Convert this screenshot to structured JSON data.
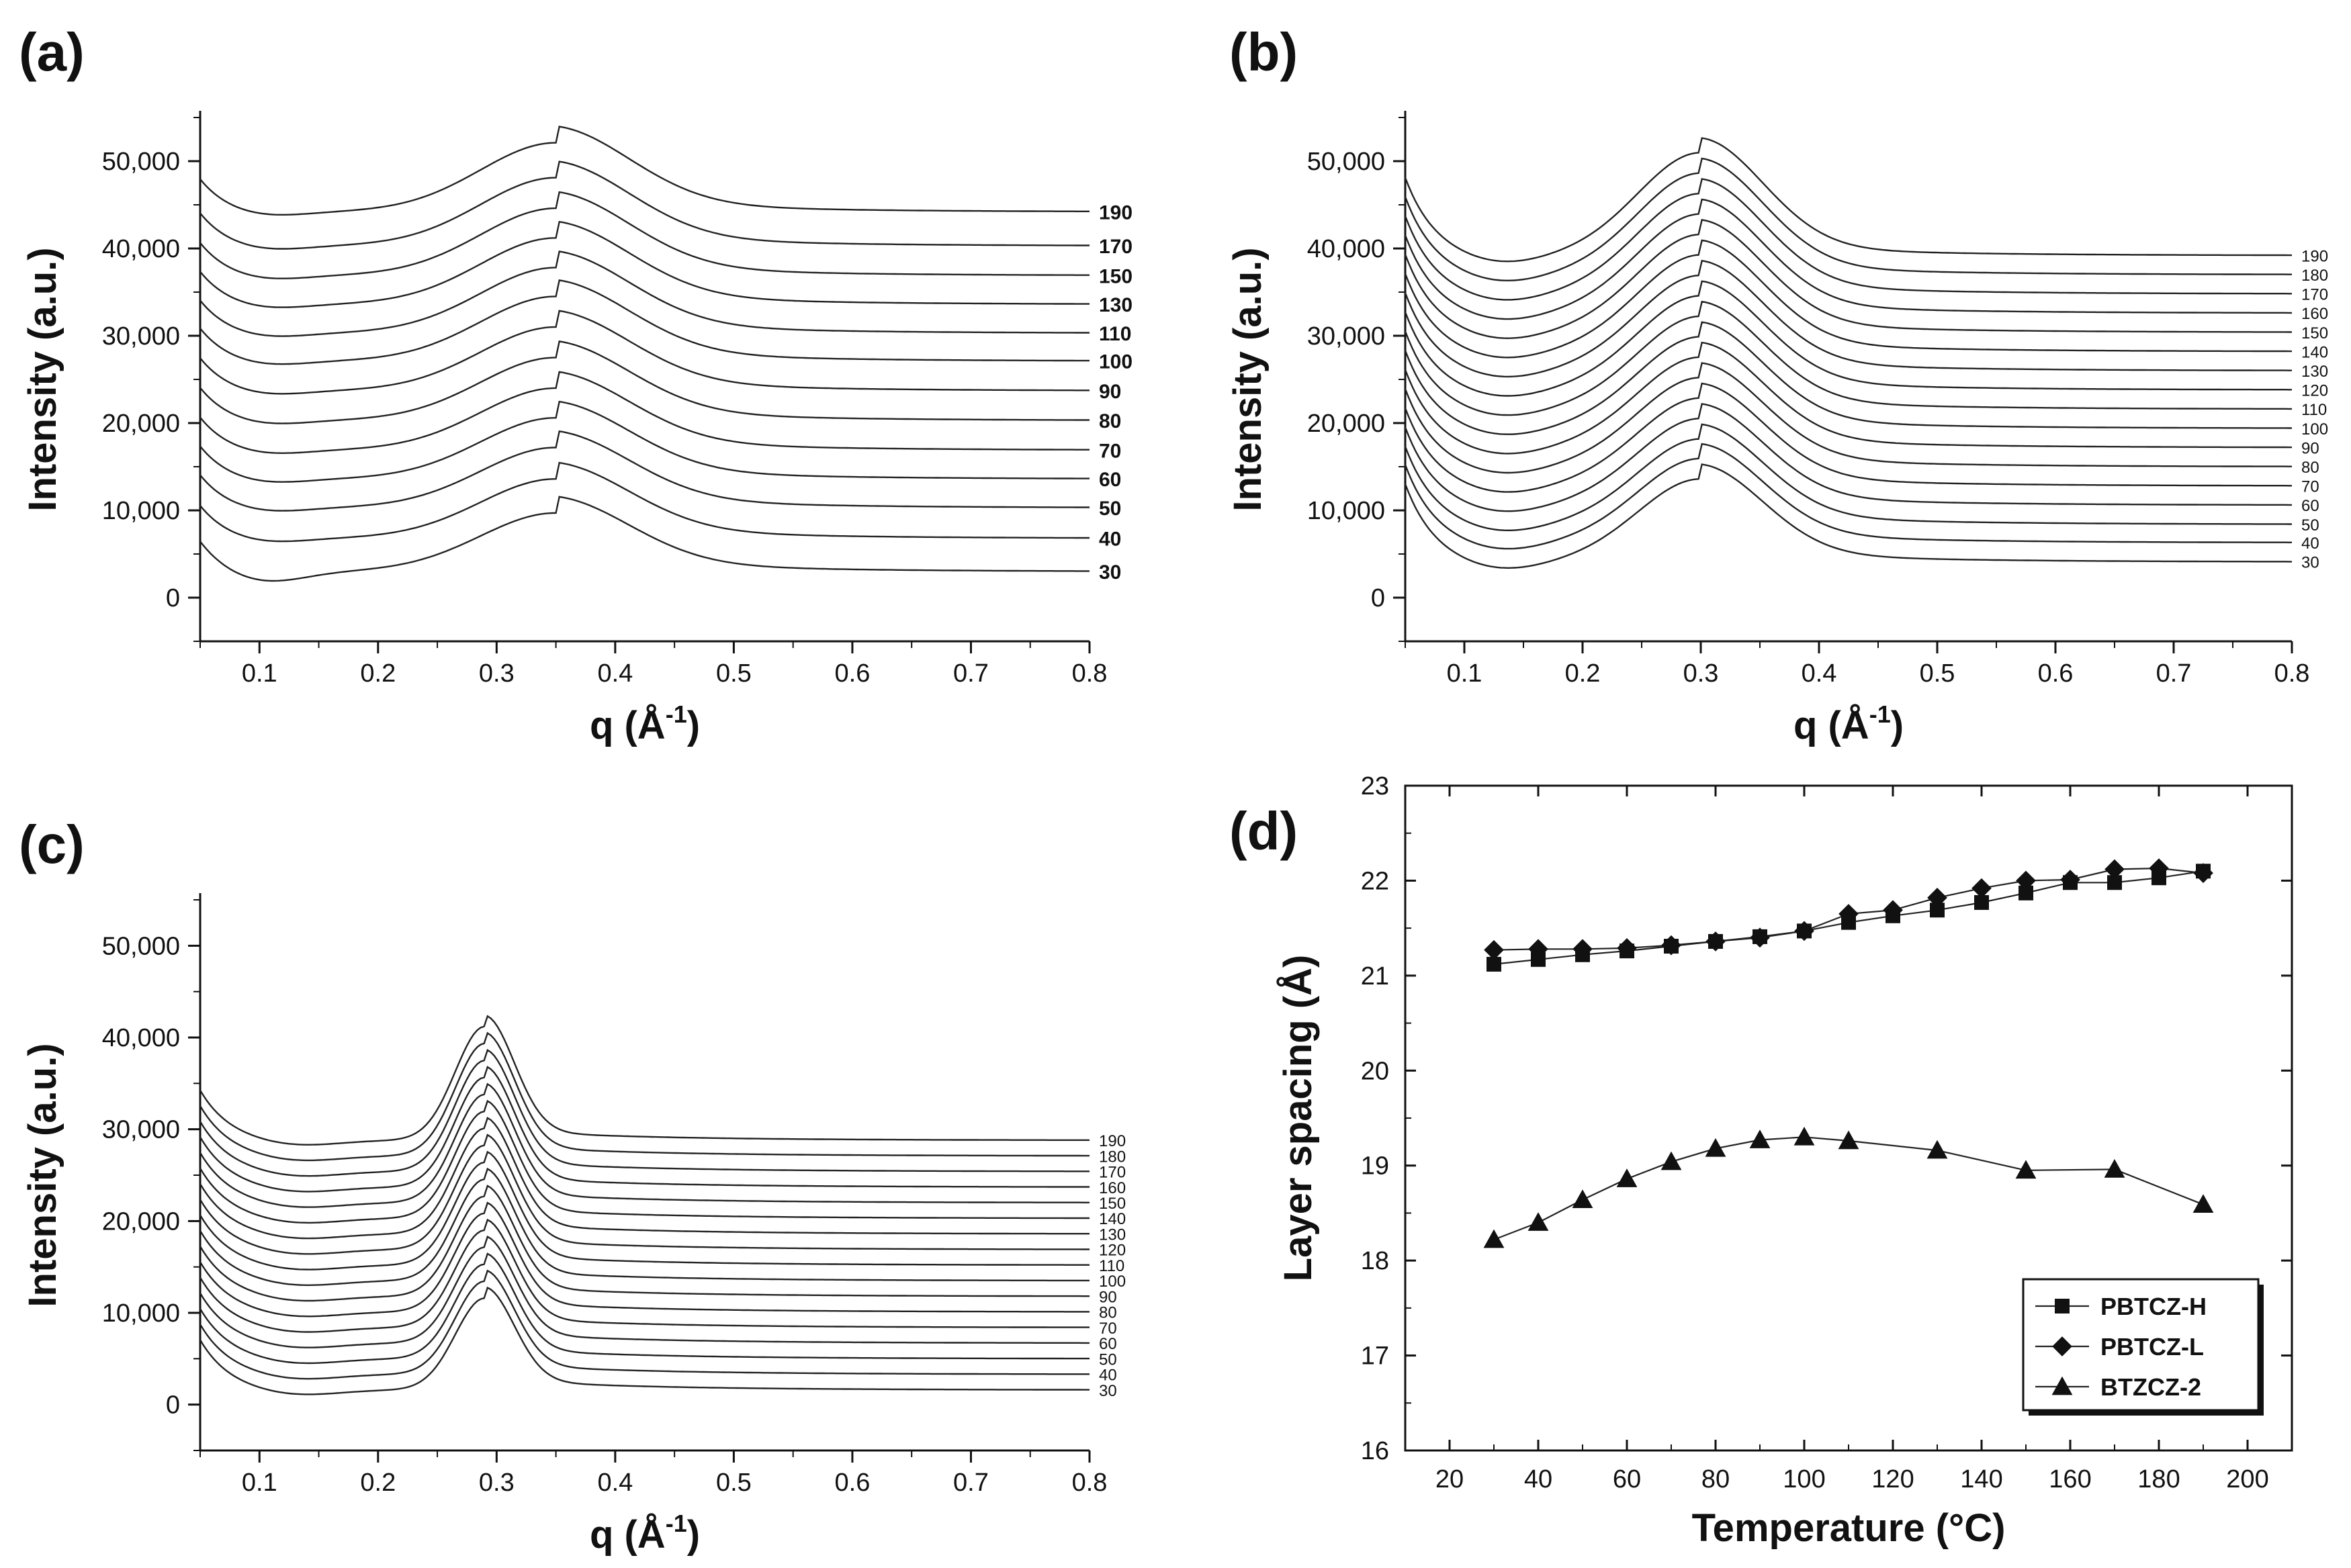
{
  "chart_data": [
    {
      "id": "a",
      "type": "line",
      "panel_label": "(a)",
      "xlabel": "q (Å",
      "xlabel_sup": "-1",
      "xlabel_close": ")",
      "ylabel": "Intensity (a.u.)",
      "xlim": [
        0.05,
        0.8
      ],
      "ylim": [
        -5000,
        55000
      ],
      "xticks": [
        0.1,
        0.2,
        0.3,
        0.4,
        0.5,
        0.6,
        0.7,
        0.8
      ],
      "xtick_labels": [
        "0.1",
        "0.2",
        "0.3",
        "0.4",
        "0.5",
        "0.6",
        "0.7",
        "0.8"
      ],
      "yticks": [
        0,
        10000,
        20000,
        30000,
        40000,
        50000
      ],
      "ytick_labels": [
        "0",
        "10,000",
        "20,000",
        "30,000",
        "40,000",
        "50,000"
      ],
      "curve_labels": [
        "30",
        "40",
        "50",
        "60",
        "70",
        "80",
        "90",
        "100",
        "110",
        "130",
        "150",
        "170",
        "190"
      ],
      "curve_end_values": [
        3000,
        6800,
        10300,
        13600,
        16900,
        20300,
        23700,
        27100,
        30300,
        33600,
        36900,
        40300,
        44200
      ],
      "peak_q": 0.35,
      "peak_height": 6700,
      "peak_width": 0.09,
      "low_q_rise": 4000
    },
    {
      "id": "b",
      "type": "line",
      "panel_label": "(b)",
      "xlabel": "q (Å",
      "xlabel_sup": "-1",
      "xlabel_close": ")",
      "ylabel": "Intensity (a.u.)",
      "xlim": [
        0.05,
        0.8
      ],
      "ylim": [
        -5000,
        55000
      ],
      "xticks": [
        0.1,
        0.2,
        0.3,
        0.4,
        0.5,
        0.6,
        0.7,
        0.8
      ],
      "xtick_labels": [
        "0.1",
        "0.2",
        "0.3",
        "0.4",
        "0.5",
        "0.6",
        "0.7",
        "0.8"
      ],
      "yticks": [
        0,
        10000,
        20000,
        30000,
        40000,
        50000
      ],
      "ytick_labels": [
        "0",
        "10,000",
        "20,000",
        "30,000",
        "40,000",
        "50,000"
      ],
      "curve_labels": [
        "30",
        "40",
        "50",
        "60",
        "70",
        "80",
        "90",
        "100",
        "110",
        "120",
        "130",
        "140",
        "150",
        "160",
        "170",
        "180",
        "190"
      ],
      "curve_end_values": [
        4100,
        6300,
        8400,
        10600,
        12800,
        15000,
        17200,
        19400,
        21600,
        23800,
        26000,
        28200,
        30400,
        32600,
        34800,
        37000,
        39200
      ],
      "peak_q": 0.3,
      "peak_height": 9500,
      "peak_width": 0.075,
      "low_q_rise": 9000
    },
    {
      "id": "c",
      "type": "line",
      "panel_label": "(c)",
      "xlabel": "q (Å",
      "xlabel_sup": "-1",
      "xlabel_close": ")",
      "ylabel": "Intensity (a.u.)",
      "xlim": [
        0.05,
        0.8
      ],
      "ylim": [
        -5000,
        55000
      ],
      "xticks": [
        0.1,
        0.2,
        0.3,
        0.4,
        0.5,
        0.6,
        0.7,
        0.8
      ],
      "xtick_labels": [
        "0.1",
        "0.2",
        "0.3",
        "0.4",
        "0.5",
        "0.6",
        "0.7",
        "0.8"
      ],
      "yticks": [
        0,
        10000,
        20000,
        30000,
        40000,
        50000
      ],
      "ytick_labels": [
        "0",
        "10,000",
        "20,000",
        "30,000",
        "40,000",
        "50,000"
      ],
      "curve_labels": [
        "30",
        "40",
        "50",
        "60",
        "70",
        "80",
        "90",
        "100",
        "110",
        "120",
        "130",
        "140",
        "150",
        "160",
        "170",
        "180",
        "190"
      ],
      "curve_end_values": [
        1600,
        3300,
        5000,
        6700,
        8400,
        10100,
        11800,
        13500,
        15200,
        16900,
        18600,
        20300,
        22000,
        23700,
        25400,
        27100,
        28800
      ],
      "peak_q": 0.29,
      "peak_height": 10000,
      "peak_width": 0.035,
      "low_q_rise": 5500
    },
    {
      "id": "d",
      "type": "line",
      "panel_label": "(d)",
      "xlabel": "Temperature (°C)",
      "ylabel": "Layer spacing (Å)",
      "xlim": [
        10,
        210
      ],
      "ylim": [
        16,
        23
      ],
      "xticks": [
        20,
        40,
        60,
        80,
        100,
        120,
        140,
        160,
        180,
        200
      ],
      "xtick_labels": [
        "20",
        "40",
        "60",
        "80",
        "100",
        "120",
        "140",
        "160",
        "180",
        "200"
      ],
      "yticks": [
        16,
        17,
        18,
        19,
        20,
        21,
        22,
        23
      ],
      "ytick_labels": [
        "16",
        "17",
        "18",
        "19",
        "20",
        "21",
        "22",
        "23"
      ],
      "legend_position": "bottom-right",
      "series": [
        {
          "name": "PBTCZ-H",
          "marker": "square",
          "x": [
            30,
            40,
            50,
            60,
            70,
            80,
            90,
            100,
            110,
            120,
            130,
            140,
            150,
            160,
            170,
            180,
            190
          ],
          "y": [
            21.12,
            21.17,
            21.22,
            21.26,
            21.31,
            21.36,
            21.41,
            21.47,
            21.56,
            21.63,
            21.69,
            21.77,
            21.87,
            21.98,
            21.98,
            22.03,
            22.1
          ]
        },
        {
          "name": "PBTCZ-L",
          "marker": "diamond",
          "x": [
            30,
            40,
            50,
            60,
            70,
            80,
            90,
            100,
            110,
            120,
            130,
            140,
            150,
            160,
            170,
            180,
            190
          ],
          "y": [
            21.27,
            21.28,
            21.28,
            21.29,
            21.32,
            21.36,
            21.4,
            21.47,
            21.65,
            21.69,
            21.82,
            21.92,
            22.0,
            22.01,
            22.12,
            22.13,
            22.08
          ]
        },
        {
          "name": "BTZCZ-2",
          "marker": "triangle",
          "x": [
            30,
            40,
            50,
            60,
            70,
            80,
            90,
            100,
            110,
            130,
            150,
            170,
            190
          ],
          "y": [
            18.22,
            18.4,
            18.64,
            18.86,
            19.04,
            19.18,
            19.27,
            19.3,
            19.26,
            19.16,
            18.95,
            18.96,
            18.59
          ]
        }
      ]
    }
  ]
}
